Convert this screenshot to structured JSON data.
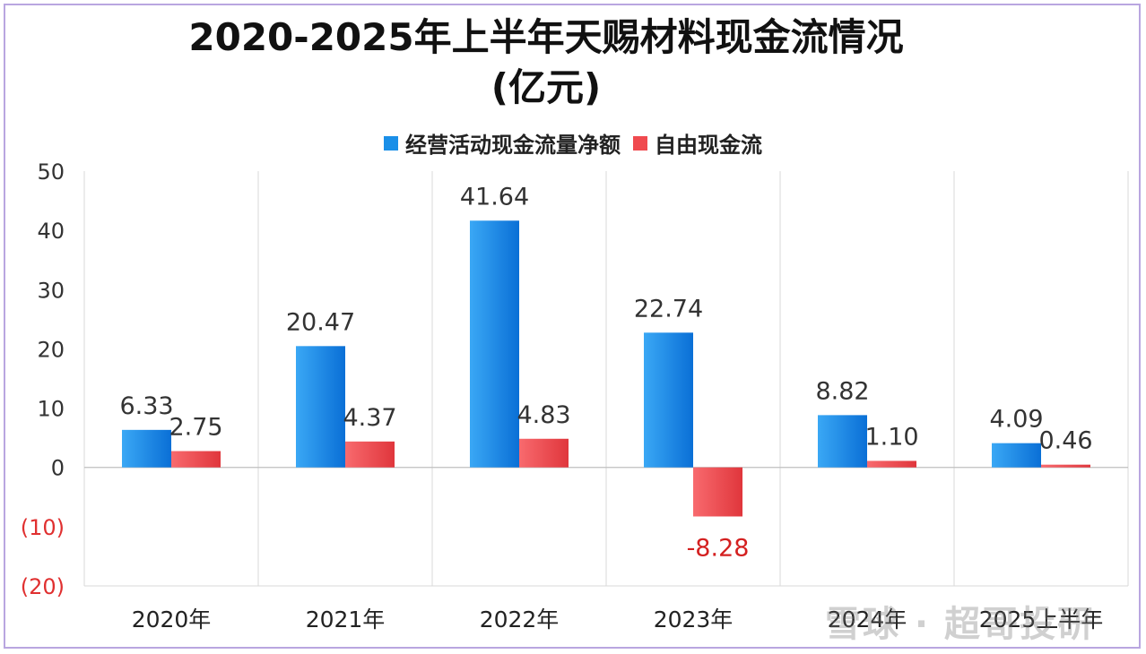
{
  "chart_data": {
    "type": "bar",
    "title_line1": "2020-2025年上半年天赐材料现金流情况",
    "title_line2": "(亿元)",
    "categories": [
      "2020年",
      "2021年",
      "2022年",
      "2023年",
      "2024年",
      "2025上半年"
    ],
    "series": [
      {
        "name": "经营活动现金流量净额",
        "values": [
          6.33,
          20.47,
          41.64,
          22.74,
          8.82,
          4.09
        ],
        "labels": [
          "6.33",
          "20.47",
          "41.64",
          "22.74",
          "8.82",
          "4.09"
        ],
        "color": "#1a8fe8"
      },
      {
        "name": "自由现金流",
        "values": [
          2.75,
          4.37,
          4.83,
          -8.28,
          1.1,
          0.46
        ],
        "labels": [
          "2.75",
          "4.37",
          "4.83",
          "-8.28",
          "1.10",
          "0.46"
        ],
        "color": "#f04a4f"
      }
    ],
    "ylim": [
      -20,
      50
    ],
    "yticks": [
      50,
      40,
      30,
      20,
      10,
      0,
      -10,
      -20
    ],
    "ytick_labels": [
      "50",
      "40",
      "30",
      "20",
      "10",
      "0",
      "(10)",
      "(20)"
    ],
    "negative_tick_color": "#e03030",
    "negative_label_color": "#d42020",
    "label_color": "#333333",
    "grid": "vertical",
    "legend": "top-center"
  },
  "watermark": "雪球 · 超哥投研"
}
